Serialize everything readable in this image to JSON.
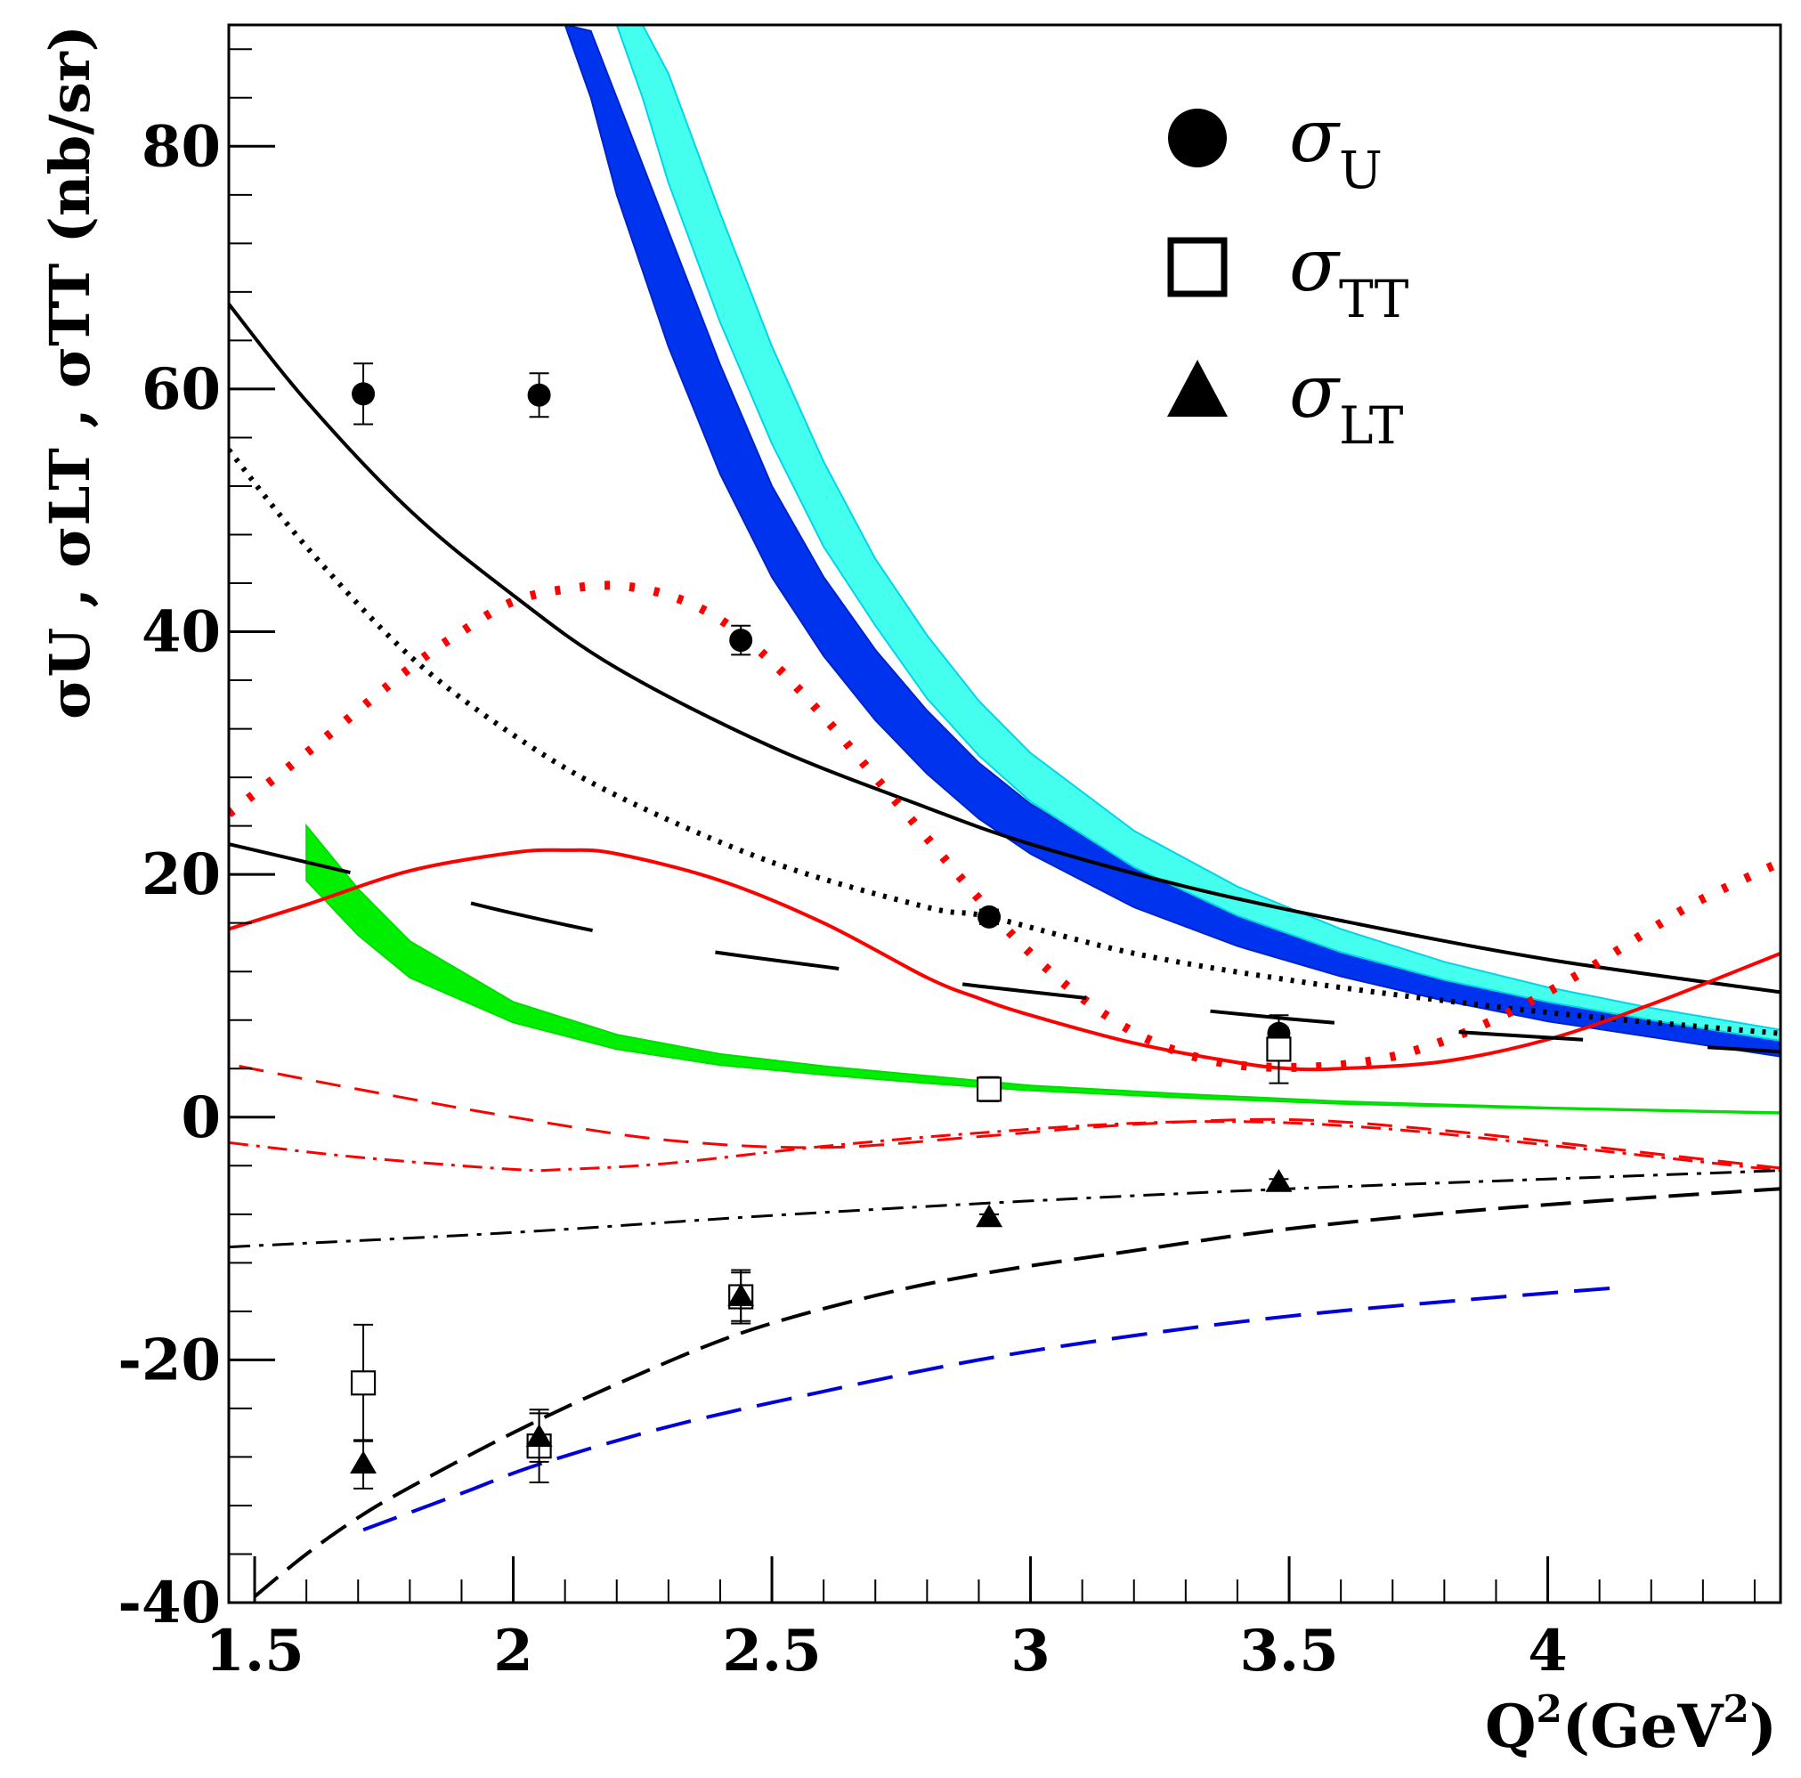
{
  "chart_data": {
    "type": "scatter",
    "title": "",
    "xlabel": {
      "base": "Q",
      "sup1": "2",
      "mid": "(GeV",
      "sup2": "2",
      "end": ")"
    },
    "ylabel": "σU , σLT , σTT (nb/sr)",
    "xlim": [
      1.45,
      4.45
    ],
    "ylim": [
      -40,
      90
    ],
    "x_ticks": [
      {
        "v": 1.5,
        "label": "1.5"
      },
      {
        "v": 2,
        "label": "2"
      },
      {
        "v": 2.5,
        "label": "2.5"
      },
      {
        "v": 3,
        "label": "3"
      },
      {
        "v": 3.5,
        "label": "3.5"
      },
      {
        "v": 4,
        "label": "4"
      }
    ],
    "y_ticks": [
      {
        "v": -40,
        "label": "-40"
      },
      {
        "v": -20,
        "label": "-20"
      },
      {
        "v": 0,
        "label": "0"
      },
      {
        "v": 20,
        "label": "20"
      },
      {
        "v": 40,
        "label": "40"
      },
      {
        "v": 60,
        "label": "60"
      },
      {
        "v": 80,
        "label": "80"
      }
    ],
    "legend": {
      "position": "top-right",
      "entries": [
        {
          "marker": "circle",
          "symbol": "σ",
          "sub": "U"
        },
        {
          "marker": "square-open",
          "symbol": "σ",
          "sub": "TT"
        },
        {
          "marker": "triangle",
          "symbol": "σ",
          "sub": "LT"
        }
      ]
    },
    "series": [
      {
        "name": "σU",
        "marker": "circle",
        "points": [
          {
            "x": 1.71,
            "y": 59.6,
            "err": 2.5
          },
          {
            "x": 2.05,
            "y": 59.5,
            "err": 1.8
          },
          {
            "x": 2.44,
            "y": 39.3,
            "err": 1.2
          },
          {
            "x": 2.92,
            "y": 16.5,
            "err": 0.6
          },
          {
            "x": 3.48,
            "y": 6.9,
            "err": 0.5
          }
        ]
      },
      {
        "name": "σTT",
        "marker": "square-open",
        "points": [
          {
            "x": 1.71,
            "y": -21.9,
            "err": 4.8
          },
          {
            "x": 2.05,
            "y": -27.1,
            "err": 3.0
          },
          {
            "x": 2.44,
            "y": -14.8,
            "err": 2.2
          },
          {
            "x": 2.92,
            "y": 2.3,
            "err": 1.0
          },
          {
            "x": 3.48,
            "y": 5.6,
            "err": 2.8
          }
        ]
      },
      {
        "name": "σLT",
        "marker": "triangle",
        "points": [
          {
            "x": 1.71,
            "y": -28.6,
            "err": 2.0
          },
          {
            "x": 2.05,
            "y": -26.4,
            "err": 2.0
          },
          {
            "x": 2.44,
            "y": -14.8,
            "err": 2.0
          },
          {
            "x": 2.92,
            "y": -8.3,
            "err": 0.3
          },
          {
            "x": 3.48,
            "y": -5.4,
            "err": 0.3
          }
        ]
      }
    ],
    "curves": [
      {
        "name": "black-solid-upper",
        "color": "#000000",
        "dash": "",
        "width": 4,
        "x": [
          1.45,
          1.6,
          1.8,
          2.0,
          2.2,
          2.5,
          2.8,
          3.0,
          3.3,
          3.6,
          4.0,
          4.45
        ],
        "y": [
          67,
          59,
          50,
          43,
          37,
          30.5,
          25.5,
          22.5,
          19,
          16.2,
          13,
          10.3
        ]
      },
      {
        "name": "black-dotted",
        "color": "#000000",
        "dash": "4 9",
        "width": 6,
        "x": [
          1.45,
          1.6,
          1.8,
          2.0,
          2.2,
          2.5,
          2.8,
          2.92,
          3.2,
          3.5,
          3.8,
          4.1,
          4.45
        ],
        "y": [
          55,
          47,
          38,
          31.5,
          26.5,
          21,
          17.3,
          16.5,
          13.5,
          11.3,
          9.6,
          8.2,
          6.9
        ]
      },
      {
        "name": "red-dotted",
        "color": "#ff0000",
        "dash": "6 22",
        "width": 10,
        "x": [
          1.45,
          1.6,
          1.8,
          1.9,
          2.0,
          2.1,
          2.2,
          2.3,
          2.4,
          2.5,
          2.6,
          2.7,
          2.8,
          2.9,
          3.0,
          3.1,
          3.2,
          3.3,
          3.4,
          3.5,
          3.6,
          3.7,
          3.8,
          3.9,
          4.0,
          4.1,
          4.2,
          4.3,
          4.45
        ],
        "y": [
          25,
          30,
          37,
          40,
          42.5,
          43.5,
          43.8,
          43,
          41,
          37.5,
          33,
          28,
          23,
          18,
          13.5,
          9.8,
          7,
          5.2,
          4.3,
          4.1,
          4.3,
          5,
          6.3,
          8.1,
          10.3,
          12.8,
          15.5,
          18,
          21
        ]
      },
      {
        "name": "red-solid",
        "color": "#ff0000",
        "dash": "",
        "width": 4,
        "x": [
          1.45,
          1.6,
          1.8,
          2.0,
          2.1,
          2.2,
          2.4,
          2.6,
          2.8,
          2.9,
          3.0,
          3.2,
          3.4,
          3.5,
          3.6,
          3.8,
          4.0,
          4.2,
          4.45
        ],
        "y": [
          15.5,
          17.5,
          20.3,
          21.8,
          22,
          21.7,
          19.5,
          16,
          11.5,
          9.8,
          8.4,
          6.1,
          4.5,
          4.0,
          4.0,
          4.6,
          6.4,
          9.3,
          13.5
        ]
      },
      {
        "name": "black-long-dash",
        "color": "#000000",
        "dash": "140 140",
        "width": 4,
        "x": [
          1.45,
          1.7,
          2.0,
          2.3,
          2.6,
          2.9,
          3.2,
          3.5,
          3.8,
          4.1,
          4.45
        ],
        "y": [
          22.5,
          20,
          16.8,
          14.2,
          12.4,
          10.8,
          9.4,
          8.1,
          7.1,
          6.3,
          5.4
        ]
      },
      {
        "name": "red-dashed",
        "color": "#ff0000",
        "dash": "28 16",
        "width": 3,
        "x": [
          1.47,
          1.7,
          2.0,
          2.3,
          2.6,
          2.9,
          3.2,
          3.5,
          3.8,
          4.1,
          4.45
        ],
        "y": [
          4.2,
          2.3,
          0,
          -1.9,
          -2.5,
          -1.6,
          -0.6,
          -0.2,
          -1.1,
          -2.5,
          -4.2
        ]
      },
      {
        "name": "red-dashdot",
        "color": "#ff0000",
        "dash": "22 9 4 9",
        "width": 3,
        "x": [
          1.45,
          1.7,
          2.0,
          2.1,
          2.3,
          2.6,
          2.9,
          3.2,
          3.45,
          3.7,
          4.0,
          4.45
        ],
        "y": [
          -2.1,
          -3.3,
          -4.3,
          -4.3,
          -3.8,
          -2.4,
          -1.3,
          -0.5,
          -0.4,
          -1.0,
          -2.3,
          -4.4
        ]
      },
      {
        "name": "black-dashdot",
        "color": "#000000",
        "dash": "24 10 5 10",
        "width": 3,
        "x": [
          1.45,
          2.0,
          2.5,
          3.0,
          3.5,
          4.0,
          4.45
        ],
        "y": [
          -10.7,
          -9.5,
          -8.1,
          -6.9,
          -5.9,
          -5.1,
          -4.4
        ]
      },
      {
        "name": "black-dashed",
        "color": "#000000",
        "dash": "34 14",
        "width": 4,
        "x": [
          1.5,
          1.6,
          1.7,
          1.8,
          2.0,
          2.2,
          2.44,
          2.7,
          2.92,
          3.2,
          3.48,
          3.8,
          4.1,
          4.45
        ],
        "y": [
          -39.5,
          -36,
          -33,
          -30.5,
          -26,
          -22,
          -17.8,
          -14.7,
          -12.8,
          -11,
          -9.3,
          -7.9,
          -6.9,
          -5.9
        ]
      },
      {
        "name": "blue-dashed",
        "color": "#0000dd",
        "dash": "40 18",
        "width": 4,
        "x": [
          1.71,
          1.9,
          2.05,
          2.3,
          2.6,
          2.9,
          3.2,
          3.5,
          3.8,
          4.15
        ],
        "y": [
          -34,
          -31,
          -28.6,
          -25.5,
          -22.6,
          -20,
          -18,
          -16.4,
          -15.2,
          -14
        ]
      }
    ],
    "bands": [
      {
        "name": "green-band",
        "fill": "#00ee00",
        "stroke": "#00dd00",
        "x": [
          1.6,
          1.7,
          1.8,
          2.0,
          2.2,
          2.4,
          2.6,
          2.8,
          3.0,
          3.3,
          3.6,
          4.0,
          4.45
        ],
        "upper": [
          24.0,
          18.8,
          14.5,
          9.5,
          6.8,
          5.2,
          4.2,
          3.4,
          2.6,
          1.9,
          1.3,
          0.8,
          0.4
        ],
        "lower": [
          19.5,
          15.0,
          11.5,
          7.8,
          5.6,
          4.3,
          3.5,
          2.8,
          2.2,
          1.6,
          1.1,
          0.7,
          0.3
        ]
      },
      {
        "name": "blue-band",
        "fill": "#0033ee",
        "stroke": "#0022cc",
        "x": [
          2.1,
          2.15,
          2.2,
          2.3,
          2.4,
          2.5,
          2.6,
          2.7,
          2.8,
          2.9,
          3.0,
          3.2,
          3.4,
          3.6,
          3.8,
          4.0,
          4.2,
          4.45
        ],
        "upper": [
          90,
          89.5,
          84,
          73,
          62,
          52,
          44.5,
          38.5,
          33.5,
          29.2,
          25.8,
          20.7,
          16.8,
          13.9,
          11.5,
          9.6,
          8.1,
          6.5
        ],
        "lower": [
          90,
          84,
          76,
          63.5,
          53,
          44.5,
          38,
          32.7,
          28.3,
          24.6,
          21.7,
          17.3,
          14.1,
          11.6,
          9.6,
          7.9,
          6.6,
          5.0
        ]
      },
      {
        "name": "cyan-band",
        "fill": "#44ffee",
        "stroke": "#00d6e6",
        "x": [
          2.2,
          2.25,
          2.3,
          2.4,
          2.5,
          2.6,
          2.7,
          2.8,
          2.9,
          3.0,
          3.2,
          3.4,
          3.6,
          3.8,
          4.0,
          4.2,
          4.45
        ],
        "upper": [
          90,
          90,
          86,
          74.5,
          63.5,
          54,
          46,
          39.7,
          34.3,
          30,
          23.6,
          19,
          15.5,
          12.8,
          10.7,
          9.0,
          7.2
        ],
        "lower": [
          90,
          84,
          77,
          65.5,
          55.5,
          47,
          40.5,
          34.5,
          29.8,
          26,
          20.6,
          16.6,
          13.6,
          11.3,
          9.5,
          8.0,
          6.3
        ]
      }
    ]
  }
}
